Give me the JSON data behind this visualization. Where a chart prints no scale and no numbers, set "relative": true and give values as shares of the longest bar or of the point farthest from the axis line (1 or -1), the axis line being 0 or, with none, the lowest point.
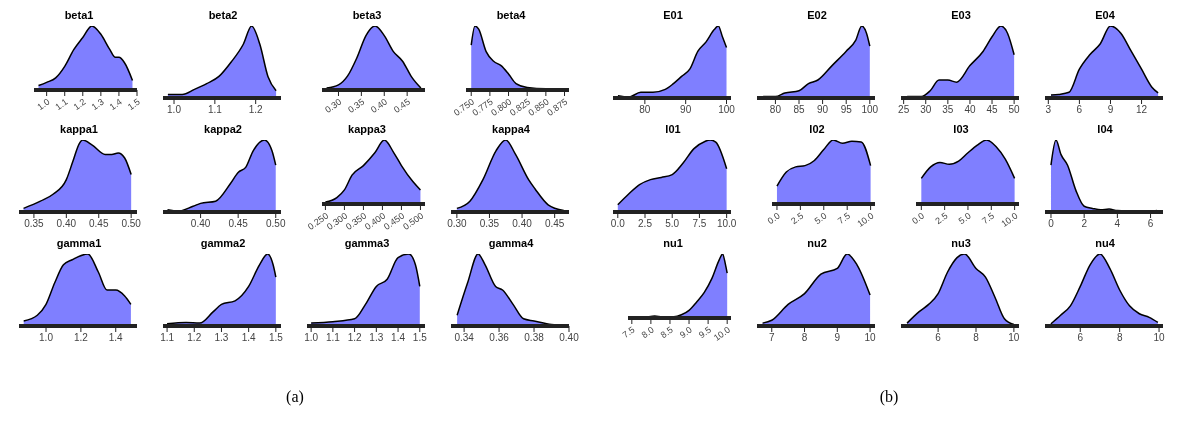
{
  "chart_data": [
    {
      "type": "area",
      "title": "beta1",
      "relative": true,
      "color": "#7f7fff",
      "annotations": [
        "(a)"
      ],
      "xlim": [
        0.93,
        1.5
      ],
      "xticks": [
        {
          "value": 1.0,
          "label": "1.0"
        },
        1.1,
        1.2,
        1.3,
        1.4,
        1.5
      ],
      "x": [
        0.955,
        1.0,
        1.05,
        1.1,
        1.15,
        1.2,
        1.25,
        1.3,
        1.35,
        1.38,
        1.4,
        1.43,
        1.475
      ],
      "values": [
        0.07,
        0.12,
        0.19,
        0.37,
        0.63,
        0.82,
        1.0,
        0.87,
        0.63,
        0.51,
        0.51,
        0.43,
        0.15
      ]
    },
    {
      "type": "area",
      "title": "beta2",
      "relative": true,
      "color": "#7f7fff",
      "xlim": [
        0.973,
        1.262
      ],
      "xticks": [
        {
          "value": 1.0,
          "label": "1.0"
        },
        1.1,
        1.2
      ],
      "x": [
        0.985,
        1.02,
        1.05,
        1.08,
        1.11,
        1.14,
        1.17,
        1.19,
        1.21,
        1.23,
        1.25
      ],
      "values": [
        0.05,
        0.05,
        0.12,
        0.2,
        0.3,
        0.5,
        0.75,
        1.0,
        0.75,
        0.3,
        0.1
      ]
    },
    {
      "type": "area",
      "title": "beta3",
      "relative": true,
      "color": "#7f7fff",
      "xlim": [
        0.264,
        0.489
      ],
      "xticks": [
        {
          "value": 0.3,
          "label": "0.30"
        },
        0.35,
        {
          "value": 0.4,
          "label": "0.40"
        },
        0.45
      ],
      "x": [
        0.274,
        0.3,
        0.32,
        0.34,
        0.36,
        0.38,
        0.4,
        0.42,
        0.44,
        0.46,
        0.48
      ],
      "values": [
        0.03,
        0.08,
        0.22,
        0.5,
        0.85,
        1.0,
        0.85,
        0.6,
        0.45,
        0.2,
        0.03
      ]
    },
    {
      "type": "area",
      "title": "beta4",
      "relative": true,
      "color": "#7f7fff",
      "xlim": [
        0.743,
        0.881
      ],
      "xticks": [
        {
          "value": 0.75,
          "label": "0.750"
        },
        0.775,
        {
          "value": 0.8,
          "label": "0.800"
        },
        0.825,
        {
          "value": 0.85,
          "label": "0.850"
        },
        0.875
      ],
      "x": [
        0.75,
        0.755,
        0.76,
        0.77,
        0.78,
        0.79,
        0.8,
        0.81,
        0.825,
        0.85,
        0.875
      ],
      "values": [
        0.7,
        1.0,
        0.95,
        0.6,
        0.45,
        0.38,
        0.25,
        0.1,
        0.04,
        0.02,
        0.02
      ]
    },
    {
      "type": "area",
      "title": "kappa1",
      "relative": true,
      "color": "#7f7fff",
      "xlim": [
        0.327,
        0.509
      ],
      "xticks": [
        0.35,
        {
          "value": 0.4,
          "label": "0.40"
        },
        0.45,
        {
          "value": 0.5,
          "label": "0.50"
        }
      ],
      "x": [
        0.334,
        0.36,
        0.38,
        0.4,
        0.41,
        0.42,
        0.425,
        0.44,
        0.46,
        0.47,
        0.48,
        0.49,
        0.5
      ],
      "values": [
        0.05,
        0.15,
        0.25,
        0.45,
        0.7,
        0.95,
        1.0,
        0.93,
        0.8,
        0.8,
        0.82,
        0.75,
        0.52
      ]
    },
    {
      "type": "area",
      "title": "kappa2",
      "relative": true,
      "color": "#7f7fff",
      "xlim": [
        0.35,
        0.507
      ],
      "xticks": [
        {
          "value": 0.4,
          "label": "0.40"
        },
        0.45,
        {
          "value": 0.5,
          "label": "0.50"
        }
      ],
      "x": [
        0.356,
        0.37,
        0.39,
        0.4,
        0.42,
        0.44,
        0.45,
        0.46,
        0.47,
        0.485,
        0.495,
        0.5
      ],
      "values": [
        0.03,
        0.01,
        0.08,
        0.12,
        0.15,
        0.4,
        0.55,
        0.62,
        0.85,
        1.0,
        0.85,
        0.65
      ]
    },
    {
      "type": "area",
      "title": "kappa3",
      "relative": true,
      "color": "#7f7fff",
      "xlim": [
        0.241,
        0.512
      ],
      "xticks": [
        {
          "value": 0.25,
          "label": "0.250"
        },
        {
          "value": 0.3,
          "label": "0.300"
        },
        {
          "value": 0.35,
          "label": "0.350"
        },
        {
          "value": 0.4,
          "label": "0.400"
        },
        {
          "value": 0.45,
          "label": "0.450"
        },
        {
          "value": 0.5,
          "label": "0.500"
        }
      ],
      "x": [
        0.25,
        0.28,
        0.3,
        0.32,
        0.35,
        0.38,
        0.405,
        0.43,
        0.45,
        0.48,
        0.5
      ],
      "values": [
        0.03,
        0.1,
        0.22,
        0.45,
        0.6,
        0.8,
        1.0,
        0.8,
        0.6,
        0.35,
        0.22
      ]
    },
    {
      "type": "area",
      "title": "kappa4",
      "relative": true,
      "color": "#7f7fff",
      "xlim": [
        0.291,
        0.472
      ],
      "xticks": [
        {
          "value": 0.3,
          "label": "0.30"
        },
        0.35,
        {
          "value": 0.4,
          "label": "0.40"
        },
        0.45
      ],
      "x": [
        0.3,
        0.32,
        0.34,
        0.36,
        0.375,
        0.39,
        0.41,
        0.42,
        0.44,
        0.464
      ],
      "values": [
        0.05,
        0.15,
        0.45,
        0.85,
        1.0,
        0.8,
        0.45,
        0.32,
        0.1,
        0.02
      ]
    },
    {
      "type": "area",
      "title": "gamma1",
      "relative": true,
      "color": "#7f7fff",
      "xlim": [
        0.845,
        1.522
      ],
      "xticks": [
        {
          "value": 1.0,
          "label": "1.0"
        },
        1.2,
        1.4
      ],
      "x": [
        0.872,
        0.95,
        1.0,
        1.05,
        1.1,
        1.15,
        1.24,
        1.3,
        1.35,
        1.4,
        1.45,
        1.487
      ],
      "values": [
        0.07,
        0.15,
        0.3,
        0.6,
        0.85,
        0.92,
        1.0,
        0.75,
        0.5,
        0.5,
        0.42,
        0.3
      ]
    },
    {
      "type": "area",
      "title": "gamma2",
      "relative": true,
      "color": "#7f7fff",
      "xlim": [
        1.085,
        1.519
      ],
      "xticks": [
        1.1,
        1.2,
        1.3,
        1.4,
        1.5
      ],
      "x": [
        1.1,
        1.17,
        1.22,
        1.27,
        1.3,
        1.35,
        1.4,
        1.44,
        1.47,
        1.49,
        1.5
      ],
      "values": [
        0.03,
        0.05,
        0.04,
        0.2,
        0.3,
        0.35,
        0.55,
        0.85,
        1.0,
        0.85,
        0.68
      ]
    },
    {
      "type": "area",
      "title": "gamma3",
      "relative": true,
      "color": "#7f7fff",
      "xlim": [
        0.981,
        1.524
      ],
      "xticks": [
        {
          "value": 1.0,
          "label": "1.0"
        },
        1.1,
        1.2,
        1.3,
        1.4,
        1.5
      ],
      "x": [
        1.0,
        1.1,
        1.2,
        1.25,
        1.3,
        1.35,
        1.4,
        1.45,
        1.48,
        1.5
      ],
      "values": [
        0.04,
        0.06,
        0.1,
        0.3,
        0.55,
        0.65,
        0.95,
        1.0,
        0.85,
        0.55
      ]
    },
    {
      "type": "area",
      "title": "gamma4",
      "relative": true,
      "color": "#7f7fff",
      "xlim": [
        0.3325,
        0.4
      ],
      "xticks": [
        0.34,
        0.36,
        0.38,
        {
          "value": 0.4,
          "label": "0.40"
        }
      ],
      "x": [
        0.336,
        0.342,
        0.348,
        0.352,
        0.358,
        0.362,
        0.368,
        0.374,
        0.38,
        0.39,
        0.398
      ],
      "values": [
        0.15,
        0.6,
        1.0,
        0.85,
        0.55,
        0.5,
        0.3,
        0.1,
        0.07,
        0.02,
        0.01
      ]
    },
    {
      "type": "area",
      "title": "E01",
      "relative": true,
      "color": "#7f7fff",
      "annotations": [
        "(b)"
      ],
      "xlim": [
        72.2,
        101.1
      ],
      "xticks": [
        80,
        90,
        100
      ],
      "x": [
        73.4,
        76,
        79,
        82,
        85,
        87,
        89,
        91,
        93,
        95,
        97,
        98,
        99,
        100
      ],
      "values": [
        0.03,
        0.01,
        0.08,
        0.08,
        0.12,
        0.2,
        0.3,
        0.4,
        0.65,
        0.78,
        0.95,
        1.0,
        0.85,
        0.7
      ]
    },
    {
      "type": "area",
      "title": "E02",
      "relative": true,
      "color": "#7f7fff",
      "xlim": [
        76.1,
        101.1
      ],
      "xticks": [
        80,
        85,
        90,
        95,
        100
      ],
      "x": [
        77.4,
        80,
        82,
        85,
        87,
        89,
        92,
        95,
        97,
        98.3,
        99.3,
        100
      ],
      "values": [
        0.02,
        0.02,
        0.07,
        0.1,
        0.2,
        0.25,
        0.45,
        0.65,
        0.8,
        1.0,
        0.9,
        0.72
      ]
    },
    {
      "type": "area",
      "title": "E03",
      "relative": true,
      "color": "#7f7fff",
      "xlim": [
        24.4,
        51.1
      ],
      "xticks": [
        25,
        30,
        35,
        40,
        45,
        50
      ],
      "x": [
        25.8,
        29,
        31,
        33,
        35,
        37,
        40,
        43,
        45,
        47,
        48.5,
        50
      ],
      "values": [
        0.02,
        0.02,
        0.1,
        0.25,
        0.25,
        0.22,
        0.45,
        0.65,
        0.85,
        1.0,
        0.9,
        0.6
      ]
    },
    {
      "type": "area",
      "title": "E04",
      "relative": true,
      "color": "#7f7fff",
      "xlim": [
        2.68,
        14.07
      ],
      "xticks": [
        3,
        6,
        9,
        12
      ],
      "x": [
        3.26,
        4,
        5,
        6,
        7,
        8,
        9,
        10,
        11,
        12,
        13,
        13.6
      ],
      "values": [
        0.04,
        0.05,
        0.08,
        0.4,
        0.6,
        0.75,
        1.0,
        0.9,
        0.65,
        0.4,
        0.15,
        0.07
      ]
    },
    {
      "type": "area",
      "title": "I01",
      "relative": true,
      "color": "#7f7fff",
      "xlim": [
        -0.44,
        10.4
      ],
      "xticks": [
        {
          "value": 0,
          "label": "0.0"
        },
        2.5,
        {
          "value": 5,
          "label": "5.0"
        },
        7.5,
        {
          "value": 10,
          "label": "10.0"
        }
      ],
      "x": [
        0,
        1,
        2,
        3,
        4,
        5,
        6,
        7,
        8,
        8.5,
        9,
        10
      ],
      "values": [
        0.1,
        0.25,
        0.38,
        0.45,
        0.48,
        0.52,
        0.68,
        0.88,
        0.98,
        1.0,
        0.97,
        0.6
      ]
    },
    {
      "type": "area",
      "title": "I02",
      "relative": true,
      "color": "#7f7fff",
      "xlim": [
        -0.53,
        10.47
      ],
      "xticks": [
        {
          "value": 0,
          "label": "0.0"
        },
        2.5,
        {
          "value": 5,
          "label": "5.0"
        },
        7.5,
        {
          "value": 10,
          "label": "10.0"
        }
      ],
      "x": [
        0,
        1,
        2,
        3,
        4,
        5,
        6,
        7,
        8,
        9,
        10
      ],
      "values": [
        0.28,
        0.5,
        0.58,
        0.6,
        0.68,
        0.85,
        1.0,
        0.95,
        0.98,
        0.97,
        0.6
      ]
    },
    {
      "type": "area",
      "title": "I03",
      "relative": true,
      "color": "#7f7fff",
      "xlim": [
        -0.57,
        10.47
      ],
      "xticks": [
        {
          "value": 0,
          "label": "0.0"
        },
        2.5,
        {
          "value": 5,
          "label": "5.0"
        },
        7.5,
        {
          "value": 10,
          "label": "10.0"
        }
      ],
      "x": [
        0,
        1,
        2,
        3,
        4,
        5,
        6,
        7,
        8,
        9,
        10
      ],
      "values": [
        0.4,
        0.58,
        0.65,
        0.62,
        0.67,
        0.8,
        0.92,
        1.0,
        0.9,
        0.7,
        0.4
      ]
    },
    {
      "type": "area",
      "title": "I04",
      "relative": true,
      "color": "#7f7fff",
      "xlim": [
        -0.36,
        6.75
      ],
      "xticks": [
        0,
        2,
        4,
        6
      ],
      "x": [
        0,
        0.3,
        0.6,
        1,
        1.5,
        2,
        2.5,
        3,
        3.5,
        4,
        5,
        6,
        6.4
      ],
      "values": [
        0.65,
        1.0,
        0.8,
        0.65,
        0.3,
        0.08,
        0.05,
        0.03,
        0.04,
        0.02,
        0.01,
        0.01,
        0.02
      ]
    },
    {
      "type": "area",
      "title": "nu1",
      "relative": true,
      "color": "#7f7fff",
      "xlim": [
        7.4,
        10.1
      ],
      "xticks": [
        7.5,
        {
          "value": 8,
          "label": "8.0"
        },
        8.5,
        {
          "value": 9,
          "label": "9.0"
        },
        9.5,
        {
          "value": 10,
          "label": "10.0"
        }
      ],
      "x": [
        7.6,
        7.8,
        8.1,
        8.3,
        8.6,
        8.8,
        9.0,
        9.2,
        9.4,
        9.6,
        9.8,
        9.88,
        9.95,
        10.0
      ],
      "values": [
        0.02,
        0.01,
        0.03,
        0.02,
        0.02,
        0.05,
        0.12,
        0.25,
        0.4,
        0.62,
        0.92,
        1.0,
        0.85,
        0.7
      ]
    },
    {
      "type": "area",
      "title": "nu2",
      "relative": true,
      "color": "#7f7fff",
      "xlim": [
        6.55,
        10.15
      ],
      "xticks": [
        7,
        8,
        9,
        10
      ],
      "x": [
        6.72,
        7,
        7.5,
        8,
        8.5,
        9,
        9.3,
        9.6,
        10
      ],
      "values": [
        0.04,
        0.08,
        0.3,
        0.45,
        0.72,
        0.8,
        1.0,
        0.85,
        0.43
      ]
    },
    {
      "type": "area",
      "title": "nu3",
      "relative": true,
      "color": "#7f7fff",
      "xlim": [
        4.04,
        10.27
      ],
      "xticks": [
        6,
        8,
        10
      ],
      "x": [
        4.36,
        5,
        5.5,
        6,
        6.5,
        7,
        7.4,
        8,
        8.5,
        9,
        9.5,
        10
      ],
      "values": [
        0.04,
        0.2,
        0.3,
        0.45,
        0.75,
        0.95,
        1.0,
        0.8,
        0.68,
        0.4,
        0.1,
        0.02
      ]
    },
    {
      "type": "area",
      "title": "nu4",
      "relative": true,
      "color": "#7f7fff",
      "xlim": [
        4.21,
        10.2
      ],
      "xticks": [
        6,
        8,
        10
      ],
      "x": [
        4.51,
        5,
        5.5,
        6,
        6.5,
        7,
        7.5,
        8,
        8.5,
        9,
        9.5,
        9.94
      ],
      "values": [
        0.03,
        0.15,
        0.28,
        0.55,
        0.85,
        1.0,
        0.8,
        0.5,
        0.28,
        0.17,
        0.12,
        0.05
      ]
    }
  ]
}
